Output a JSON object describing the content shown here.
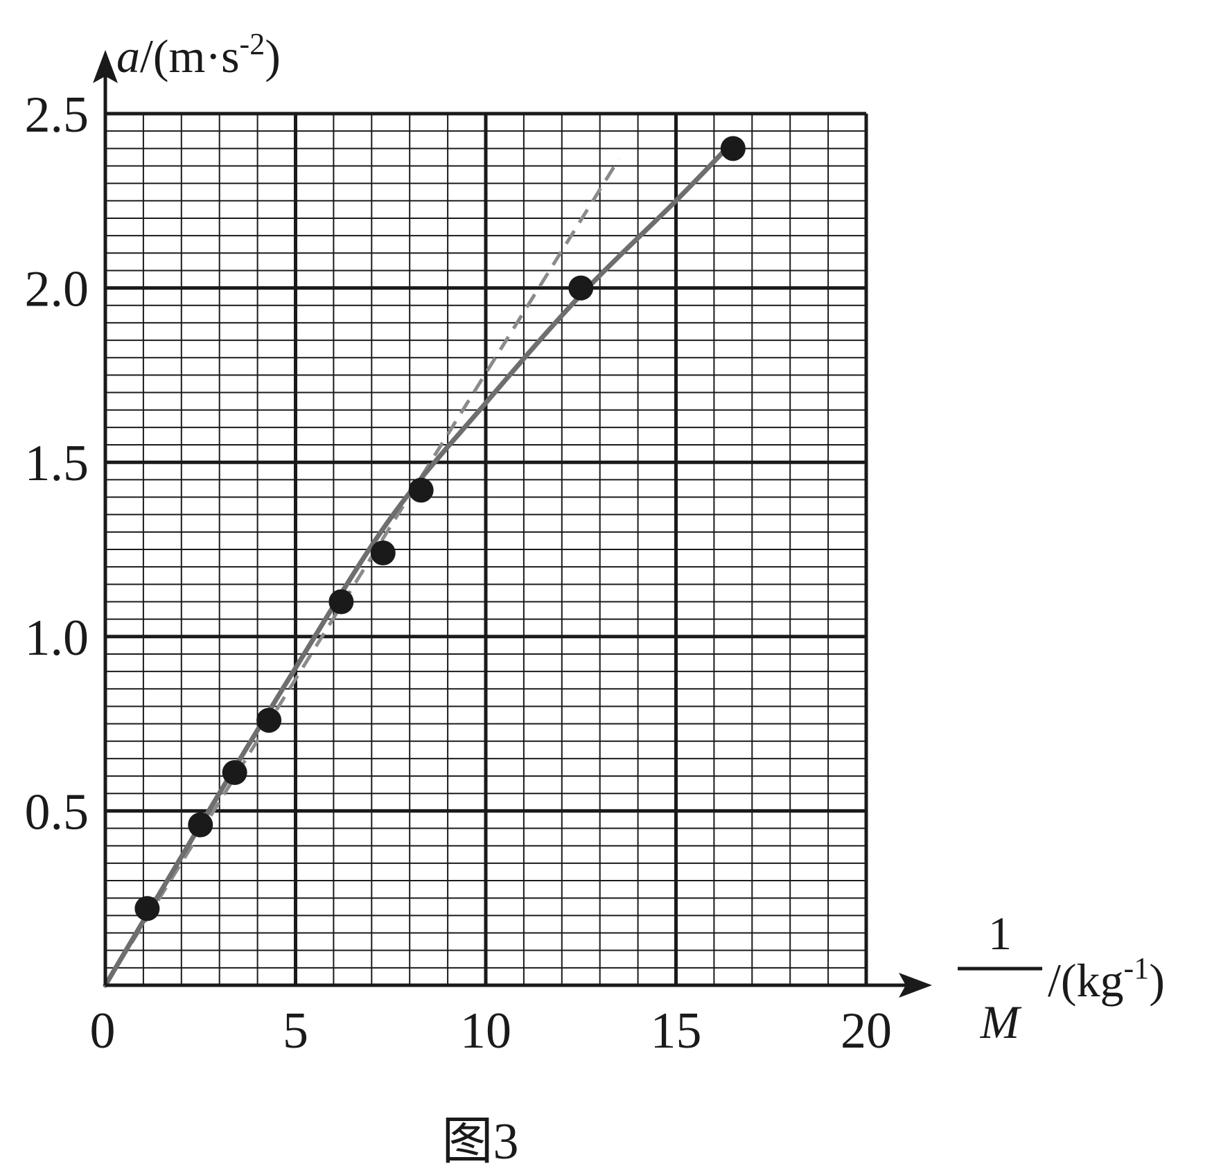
{
  "chart_data": {
    "type": "scatter",
    "caption": "图3",
    "ylabel": {
      "var": "a",
      "unit_open": "/(m·s",
      "unit_exp": "-2",
      "unit_close": ")"
    },
    "xlabel": {
      "numerator": "1",
      "denominator": "M",
      "unit_open": "/(kg",
      "unit_exp": "-1",
      "unit_close": ")"
    },
    "xlim": [
      0,
      20
    ],
    "ylim": [
      0,
      2.5
    ],
    "x_ticks": [
      0,
      5,
      10,
      15,
      20
    ],
    "x_tick_labels": [
      "0",
      "5",
      "10",
      "15",
      "20"
    ],
    "y_ticks": [
      0.5,
      1.0,
      1.5,
      2.0,
      2.5
    ],
    "y_tick_labels": [
      "0.5",
      "1.0",
      "1.5",
      "2.0",
      "2.5"
    ],
    "grid": true,
    "points": [
      {
        "x": 1.1,
        "y": 0.22
      },
      {
        "x": 2.5,
        "y": 0.46
      },
      {
        "x": 3.4,
        "y": 0.61
      },
      {
        "x": 4.3,
        "y": 0.76
      },
      {
        "x": 6.2,
        "y": 1.1
      },
      {
        "x": 7.3,
        "y": 1.24
      },
      {
        "x": 8.3,
        "y": 1.42
      },
      {
        "x": 12.5,
        "y": 2.0
      },
      {
        "x": 16.5,
        "y": 2.4
      }
    ],
    "fit_curve": {
      "style": "solid",
      "x": [
        0,
        2.5,
        5,
        7.5,
        10,
        12.5,
        15,
        16.5
      ],
      "y": [
        0,
        0.46,
        0.91,
        1.34,
        1.67,
        1.98,
        2.25,
        2.42
      ]
    },
    "dashed_line": {
      "style": "dashed",
      "x": [
        0,
        13.5
      ],
      "y": [
        0,
        2.37
      ]
    },
    "colors": {
      "axes": "#1a1a1a",
      "grid": "#1a1a1a",
      "points": "#1a1a1a",
      "fit": "#6e6e6e",
      "dashed": "#8a8a8a"
    }
  }
}
